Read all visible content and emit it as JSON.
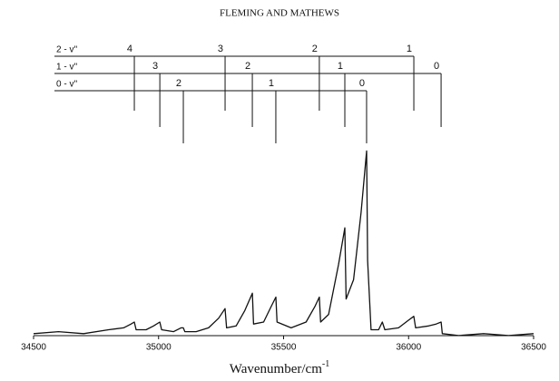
{
  "chart_data": {
    "type": "line",
    "title": "FLEMING AND MATHEWS",
    "x_label": "Wavenumber/cm",
    "x_label_superscript": "-1",
    "xlim": [
      34500,
      36500
    ],
    "xticks": [
      34500,
      35000,
      35500,
      36000,
      36500
    ],
    "ylim": [
      0,
      100
    ],
    "series": [
      {
        "color": "#111111",
        "x": [
          34500,
          34600,
          34700,
          34800,
          34860,
          34890,
          34903,
          34910,
          34950,
          34980,
          35005,
          35012,
          35060,
          35090,
          35099,
          35105,
          35150,
          35200,
          35240,
          35266,
          35272,
          35310,
          35345,
          35375,
          35380,
          35420,
          35450,
          35469,
          35474,
          35530,
          35590,
          35625,
          35643,
          35648,
          35680,
          35720,
          35745,
          35750,
          35780,
          35810,
          35832,
          35836,
          35850,
          35880,
          35895,
          35905,
          35960,
          36000,
          36021,
          36028,
          36080,
          36110,
          36130,
          36135,
          36200,
          36300,
          36400,
          36500
        ],
        "values": [
          2,
          3,
          2,
          4,
          5,
          7,
          8,
          4,
          4,
          6,
          8,
          4,
          3,
          5,
          5,
          3,
          3,
          5,
          10,
          15,
          5,
          6,
          14,
          23,
          7,
          8,
          16,
          21,
          8,
          5,
          8,
          16,
          21,
          8,
          12,
          38,
          57,
          20,
          30,
          65,
          97,
          40,
          4,
          4,
          8,
          4,
          5,
          9,
          11,
          5,
          6,
          7,
          8,
          2,
          1,
          2,
          1,
          2
        ]
      }
    ],
    "progressions": [
      {
        "label": "2 - v''",
        "bands": [
          {
            "v": "4",
            "x": 34903
          },
          {
            "v": "3",
            "x": 35266
          },
          {
            "v": "2",
            "x": 35643
          },
          {
            "v": "1",
            "x": 36021
          }
        ]
      },
      {
        "label": "1 - v''",
        "bands": [
          {
            "v": "3",
            "x": 35005
          },
          {
            "v": "2",
            "x": 35375
          },
          {
            "v": "1",
            "x": 35745
          },
          {
            "v": "0",
            "x": 36130
          }
        ]
      },
      {
        "label": "0 - v''",
        "bands": [
          {
            "v": "2",
            "x": 35099
          },
          {
            "v": "1",
            "x": 35469
          },
          {
            "v": "0",
            "x": 35832
          }
        ]
      }
    ]
  }
}
